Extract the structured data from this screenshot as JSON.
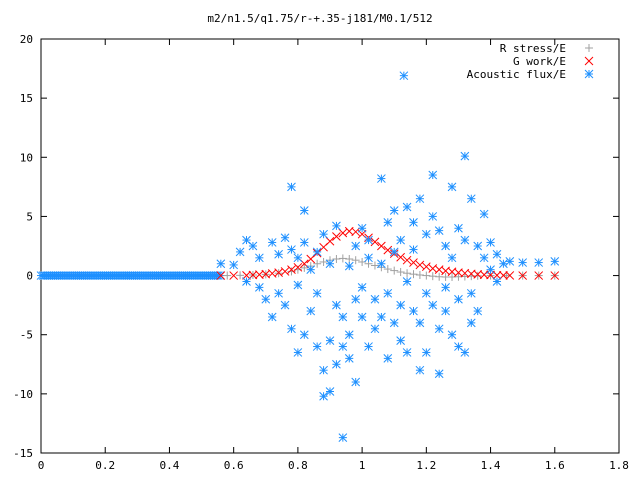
{
  "chart_data": {
    "type": "scatter",
    "title": "m2/n1.5/q1.75/r-+.35-j181/M0.1/512",
    "xlabel": "",
    "ylabel": "",
    "xlim": [
      0,
      1.8
    ],
    "ylim": [
      -15,
      20
    ],
    "xticks": [
      0,
      0.2,
      0.4,
      0.6,
      0.8,
      1,
      1.2,
      1.4,
      1.6,
      1.8
    ],
    "xtick_labels": [
      "0",
      "0.2",
      "0.4",
      "0.6",
      "0.8",
      "1",
      "1.2",
      "1.4",
      "1.6",
      "1.8"
    ],
    "yticks": [
      -15,
      -10,
      -5,
      0,
      5,
      10,
      15,
      20
    ],
    "ytick_labels": [
      "-15",
      "-10",
      "-5",
      "0",
      "5",
      "10",
      "15",
      "20"
    ],
    "grid": false,
    "legend_position": "top-right",
    "series": [
      {
        "name": "R stress/E",
        "marker": "plus",
        "color": "#a0a0a0",
        "points": [
          [
            0.58,
            0
          ],
          [
            0.62,
            0.02
          ],
          [
            0.66,
            0.05
          ],
          [
            0.7,
            0.1
          ],
          [
            0.74,
            0.2
          ],
          [
            0.78,
            0.35
          ],
          [
            0.8,
            0.5
          ],
          [
            0.82,
            0.65
          ],
          [
            0.84,
            0.8
          ],
          [
            0.86,
            1.0
          ],
          [
            0.88,
            1.15
          ],
          [
            0.9,
            1.3
          ],
          [
            0.92,
            1.4
          ],
          [
            0.94,
            1.45
          ],
          [
            0.96,
            1.4
          ],
          [
            0.98,
            1.3
          ],
          [
            1.0,
            1.15
          ],
          [
            1.02,
            1.0
          ],
          [
            1.04,
            0.85
          ],
          [
            1.06,
            0.7
          ],
          [
            1.08,
            0.55
          ],
          [
            1.1,
            0.42
          ],
          [
            1.12,
            0.3
          ],
          [
            1.14,
            0.2
          ],
          [
            1.16,
            0.12
          ],
          [
            1.18,
            0.05
          ],
          [
            1.2,
            0.0
          ],
          [
            1.22,
            -0.05
          ],
          [
            1.24,
            -0.1
          ],
          [
            1.26,
            -0.12
          ],
          [
            1.28,
            -0.12
          ],
          [
            1.3,
            -0.1
          ],
          [
            1.32,
            -0.08
          ],
          [
            1.34,
            -0.05
          ],
          [
            1.36,
            -0.02
          ],
          [
            1.4,
            0
          ],
          [
            1.45,
            0
          ],
          [
            1.5,
            0
          ],
          [
            1.55,
            0
          ],
          [
            1.6,
            0
          ]
        ]
      },
      {
        "name": "G work/E",
        "marker": "cross",
        "color": "#ff0000",
        "points": [
          [
            0.56,
            0
          ],
          [
            0.6,
            0
          ],
          [
            0.64,
            0.02
          ],
          [
            0.66,
            0.05
          ],
          [
            0.68,
            0.08
          ],
          [
            0.7,
            0.12
          ],
          [
            0.72,
            0.18
          ],
          [
            0.74,
            0.25
          ],
          [
            0.76,
            0.35
          ],
          [
            0.78,
            0.5
          ],
          [
            0.8,
            0.7
          ],
          [
            0.82,
            1.0
          ],
          [
            0.84,
            1.4
          ],
          [
            0.86,
            1.9
          ],
          [
            0.88,
            2.4
          ],
          [
            0.9,
            2.9
          ],
          [
            0.92,
            3.3
          ],
          [
            0.94,
            3.6
          ],
          [
            0.96,
            3.75
          ],
          [
            0.98,
            3.7
          ],
          [
            1.0,
            3.5
          ],
          [
            1.02,
            3.2
          ],
          [
            1.04,
            2.85
          ],
          [
            1.06,
            2.5
          ],
          [
            1.08,
            2.15
          ],
          [
            1.1,
            1.85
          ],
          [
            1.12,
            1.55
          ],
          [
            1.14,
            1.3
          ],
          [
            1.16,
            1.1
          ],
          [
            1.18,
            0.9
          ],
          [
            1.2,
            0.75
          ],
          [
            1.22,
            0.6
          ],
          [
            1.24,
            0.5
          ],
          [
            1.26,
            0.4
          ],
          [
            1.28,
            0.32
          ],
          [
            1.3,
            0.25
          ],
          [
            1.32,
            0.2
          ],
          [
            1.34,
            0.15
          ],
          [
            1.36,
            0.1
          ],
          [
            1.38,
            0.07
          ],
          [
            1.4,
            0.05
          ],
          [
            1.42,
            0.03
          ],
          [
            1.44,
            0.02
          ],
          [
            1.46,
            0.01
          ],
          [
            1.5,
            0
          ],
          [
            1.55,
            0
          ],
          [
            1.6,
            0
          ]
        ]
      },
      {
        "name": "Acoustic flux/E",
        "marker": "star",
        "color": "#1e90ff",
        "points": [
          [
            0.56,
            1.0
          ],
          [
            0.6,
            0.9
          ],
          [
            0.62,
            2.0
          ],
          [
            0.64,
            -0.5
          ],
          [
            0.64,
            3.0
          ],
          [
            0.66,
            2.5
          ],
          [
            0.68,
            -1.0
          ],
          [
            0.68,
            1.5
          ],
          [
            0.7,
            -2.0
          ],
          [
            0.72,
            2.8
          ],
          [
            0.72,
            -3.5
          ],
          [
            0.74,
            1.8
          ],
          [
            0.74,
            -1.5
          ],
          [
            0.76,
            -2.5
          ],
          [
            0.76,
            3.2
          ],
          [
            0.78,
            2.2
          ],
          [
            0.78,
            -4.5
          ],
          [
            0.78,
            7.5
          ],
          [
            0.8,
            -6.5
          ],
          [
            0.8,
            1.5
          ],
          [
            0.8,
            -0.8
          ],
          [
            0.82,
            -5.0
          ],
          [
            0.82,
            5.5
          ],
          [
            0.82,
            2.8
          ],
          [
            0.84,
            -3.0
          ],
          [
            0.84,
            0.5
          ],
          [
            0.86,
            -6.0
          ],
          [
            0.86,
            2.0
          ],
          [
            0.86,
            -1.5
          ],
          [
            0.88,
            -8.0
          ],
          [
            0.88,
            3.5
          ],
          [
            0.88,
            -10.2
          ],
          [
            0.9,
            -5.5
          ],
          [
            0.9,
            1.0
          ],
          [
            0.9,
            -9.8
          ],
          [
            0.92,
            -7.5
          ],
          [
            0.92,
            -2.5
          ],
          [
            0.92,
            4.2
          ],
          [
            0.94,
            -6.0
          ],
          [
            0.94,
            -13.7
          ],
          [
            0.94,
            -3.5
          ],
          [
            0.96,
            -5.0
          ],
          [
            0.96,
            0.8
          ],
          [
            0.96,
            -7.0
          ],
          [
            0.98,
            -2.0
          ],
          [
            0.98,
            2.5
          ],
          [
            0.98,
            -9.0
          ],
          [
            1.0,
            -3.5
          ],
          [
            1.0,
            4.0
          ],
          [
            1.0,
            -1.0
          ],
          [
            1.02,
            -6.0
          ],
          [
            1.02,
            1.5
          ],
          [
            1.02,
            3.0
          ],
          [
            1.04,
            -4.5
          ],
          [
            1.04,
            -2.0
          ],
          [
            1.06,
            8.2
          ],
          [
            1.06,
            -3.5
          ],
          [
            1.06,
            1.0
          ],
          [
            1.08,
            -7.0
          ],
          [
            1.08,
            4.5
          ],
          [
            1.08,
            -1.5
          ],
          [
            1.1,
            5.5
          ],
          [
            1.1,
            -4.0
          ],
          [
            1.1,
            2.0
          ],
          [
            1.12,
            -5.5
          ],
          [
            1.12,
            3.0
          ],
          [
            1.12,
            -2.5
          ],
          [
            1.13,
            16.9
          ],
          [
            1.14,
            -6.5
          ],
          [
            1.14,
            5.8
          ],
          [
            1.14,
            -0.5
          ],
          [
            1.16,
            -3.0
          ],
          [
            1.16,
            4.5
          ],
          [
            1.16,
            2.2
          ],
          [
            1.18,
            -8.0
          ],
          [
            1.18,
            6.5
          ],
          [
            1.18,
            -4.0
          ],
          [
            1.2,
            -1.5
          ],
          [
            1.2,
            3.5
          ],
          [
            1.2,
            -6.5
          ],
          [
            1.22,
            8.5
          ],
          [
            1.22,
            -2.5
          ],
          [
            1.22,
            5.0
          ],
          [
            1.24,
            -8.3
          ],
          [
            1.24,
            3.8
          ],
          [
            1.24,
            -4.5
          ],
          [
            1.26,
            -1.0
          ],
          [
            1.26,
            2.5
          ],
          [
            1.26,
            -3.0
          ],
          [
            1.28,
            7.5
          ],
          [
            1.28,
            -5.0
          ],
          [
            1.28,
            1.5
          ],
          [
            1.3,
            -6.0
          ],
          [
            1.3,
            4.0
          ],
          [
            1.3,
            -2.0
          ],
          [
            1.32,
            10.1
          ],
          [
            1.32,
            -6.5
          ],
          [
            1.32,
            3.0
          ],
          [
            1.34,
            6.5
          ],
          [
            1.34,
            -4.0
          ],
          [
            1.34,
            -1.5
          ],
          [
            1.36,
            2.5
          ],
          [
            1.36,
            -3.0
          ],
          [
            1.38,
            5.2
          ],
          [
            1.38,
            1.5
          ],
          [
            1.4,
            2.8
          ],
          [
            1.4,
            0.5
          ],
          [
            1.42,
            1.8
          ],
          [
            1.42,
            -0.5
          ],
          [
            1.44,
            1.0
          ],
          [
            1.46,
            1.2
          ],
          [
            1.5,
            1.1
          ],
          [
            1.55,
            1.1
          ],
          [
            1.6,
            1.2
          ]
        ]
      }
    ]
  }
}
